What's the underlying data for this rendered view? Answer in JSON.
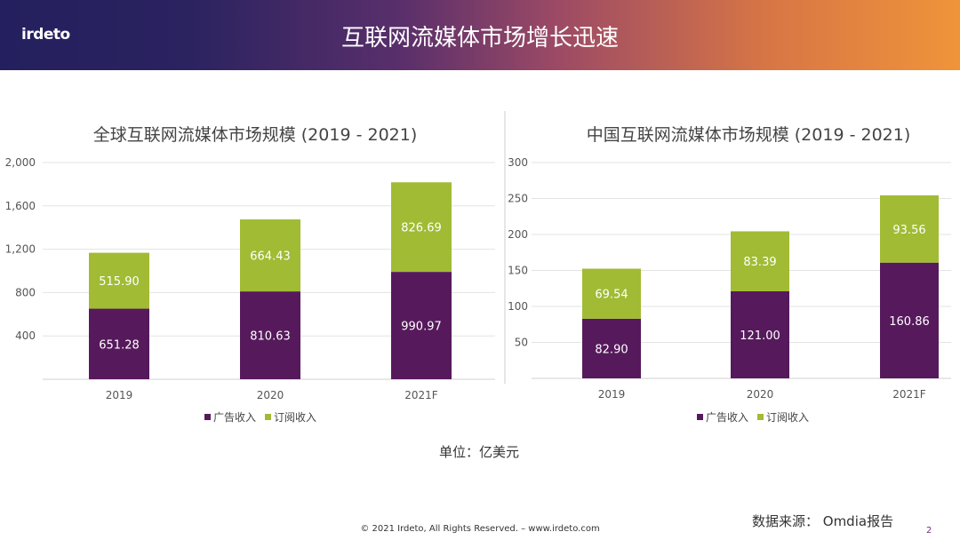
{
  "header": {
    "logo": "irdeto",
    "title": "互联网流媒体市场增长迅速"
  },
  "colors": {
    "ad": "#561a5c",
    "sub": "#a1bb34"
  },
  "chart_data": [
    {
      "type": "bar",
      "stacked": true,
      "title": "全球互联网流媒体市场规模 (2019 - 2021)",
      "categories": [
        "2019",
        "2020",
        "2021F"
      ],
      "series": [
        {
          "name": "广告收入",
          "values": [
            651.28,
            810.63,
            990.97
          ]
        },
        {
          "name": "订阅收入",
          "values": [
            515.9,
            664.43,
            826.69
          ]
        }
      ],
      "ylim": [
        0,
        2000
      ],
      "yticks": [
        400,
        800,
        1200,
        1600,
        2000
      ],
      "ytick_labels": [
        "400",
        "800",
        "1,200",
        "1,600",
        "2,000"
      ],
      "grid": true,
      "legend": "bottom"
    },
    {
      "type": "bar",
      "stacked": true,
      "title": "中国互联网流媒体市场规模 (2019 - 2021)",
      "categories": [
        "2019",
        "2020",
        "2021F"
      ],
      "series": [
        {
          "name": "广告收入",
          "values": [
            82.9,
            121.0,
            160.86
          ]
        },
        {
          "name": "订阅收入",
          "values": [
            69.54,
            83.39,
            93.56
          ]
        }
      ],
      "ylim": [
        0,
        300
      ],
      "yticks": [
        50,
        100,
        150,
        200,
        250,
        300
      ],
      "ytick_labels": [
        "50",
        "100",
        "150",
        "200",
        "250",
        "300"
      ],
      "grid": true,
      "legend": "bottom"
    }
  ],
  "unit": "单位：亿美元",
  "source": "数据来源： Omdia报告",
  "footer": {
    "copyright": "© 2021 Irdeto, All Rights Reserved. – www.irdeto.com",
    "page": "2"
  }
}
